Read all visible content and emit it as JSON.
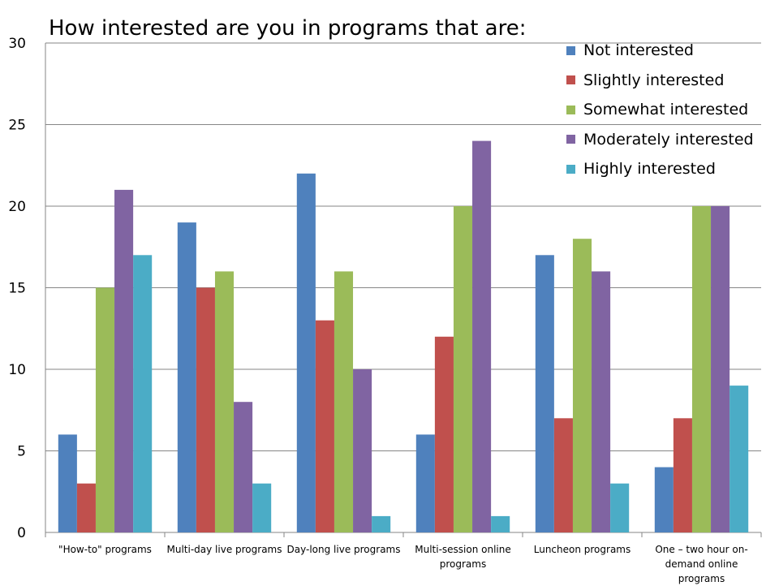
{
  "chart_data": {
    "type": "bar",
    "title": "How interested are you in programs that are:",
    "categories": [
      "\"How-to\" programs",
      "Multi-day live programs",
      "Day-long live programs",
      "Multi-session online programs",
      "Luncheon programs",
      "One – two hour on-demand online programs"
    ],
    "series": [
      {
        "name": "Not interested",
        "color": "#4F81BD",
        "values": [
          6,
          19,
          22,
          6,
          17,
          4
        ]
      },
      {
        "name": "Slightly interested",
        "color": "#C0504D",
        "values": [
          3,
          15,
          13,
          12,
          7,
          7
        ]
      },
      {
        "name": "Somewhat interested",
        "color": "#9BBB59",
        "values": [
          15,
          16,
          16,
          20,
          18,
          20
        ]
      },
      {
        "name": "Moderately interested",
        "color": "#8064A2",
        "values": [
          21,
          8,
          10,
          24,
          16,
          20
        ]
      },
      {
        "name": "Highly interested",
        "color": "#4BACC6",
        "values": [
          17,
          3,
          1,
          1,
          3,
          9
        ]
      }
    ],
    "ylim": [
      0,
      30
    ],
    "yticks": [
      "0",
      "5",
      "10",
      "15",
      "20",
      "25",
      "30"
    ],
    "grid": true,
    "legend": "top-right",
    "xlabel": "",
    "ylabel": ""
  }
}
